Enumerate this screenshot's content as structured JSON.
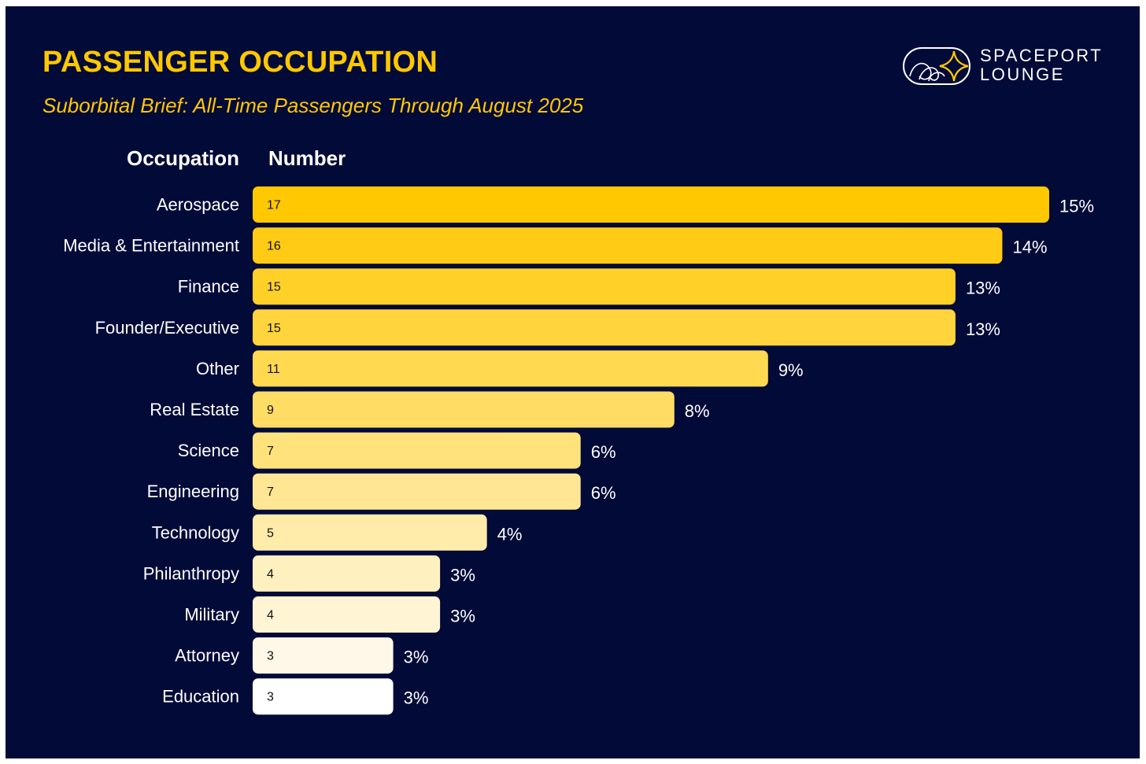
{
  "header": {
    "title": "PASSENGER OCCUPATION",
    "subtitle": "Suborbital Brief: All-Time Passengers Through August 2025"
  },
  "logo": {
    "line1": "SPACEPORT",
    "line2": "LOUNGE",
    "icon": "spaceport-lounge-logo-icon"
  },
  "colors": {
    "background": "#020a38",
    "accent": "#ffc800",
    "text": "#ffffff"
  },
  "chart_data": {
    "type": "bar",
    "orientation": "horizontal",
    "title": "PASSENGER OCCUPATION",
    "subtitle": "Suborbital Brief: All-Time Passengers Through August 2025",
    "category_header": "Occupation",
    "value_header": "Number",
    "categories": [
      "Aerospace",
      "Media & Entertainment",
      "Finance",
      "Founder/Executive",
      "Other",
      "Real Estate",
      "Science",
      "Engineering",
      "Technology",
      "Philanthropy",
      "Military",
      "Attorney",
      "Education"
    ],
    "values": [
      17,
      16,
      15,
      15,
      11,
      9,
      7,
      7,
      5,
      4,
      4,
      3,
      3
    ],
    "percent_labels": [
      "15%",
      "14%",
      "13%",
      "13%",
      "9%",
      "8%",
      "6%",
      "6%",
      "4%",
      "3%",
      "3%",
      "3%",
      "3%"
    ],
    "colors": [
      "#ffc800",
      "#ffcb14",
      "#ffd028",
      "#ffd43c",
      "#ffd950",
      "#ffdd64",
      "#ffe27c",
      "#ffe694",
      "#ffebaa",
      "#fff0c0",
      "#fff4d4",
      "#fff8e8",
      "#ffffff"
    ],
    "xlim": [
      0,
      17
    ],
    "grid": false,
    "legend": "none"
  }
}
